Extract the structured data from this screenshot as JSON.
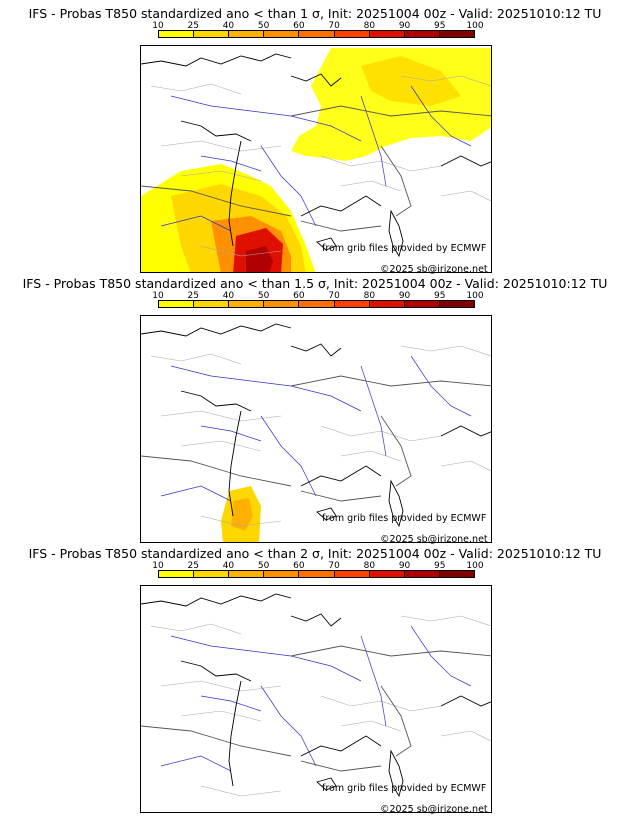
{
  "scale": {
    "ticks": [
      "10",
      "25",
      "40",
      "50",
      "60",
      "70",
      "80",
      "90",
      "95",
      "100"
    ],
    "colors": [
      "#ffff00",
      "#ffd700",
      "#ffb000",
      "#ff9000",
      "#ff7000",
      "#ff4000",
      "#e01000",
      "#b00000",
      "#800000"
    ]
  },
  "panels": [
    {
      "title": "IFS - Probas T850  standardized ano < than 1 σ, Init: 20251004 00z - Valid: 20251010:12 TU",
      "source": "from grib files provided by ECMWF",
      "copyright": "©2025 sb@irizone.net",
      "prob_fields": [
        {
          "level": "north-east",
          "color": "#ffff00"
        },
        {
          "level": "south-west",
          "color": "#e01000"
        }
      ]
    },
    {
      "title": "IFS - Probas T850  standardized ano < than 1.5 σ, Init: 20251004 00z - Valid: 20251010:12 TU",
      "source": "from grib files provided by ECMWF",
      "copyright": "©2025 sb@irizone.net",
      "prob_fields": [
        {
          "level": "south",
          "color": "#ffd700"
        }
      ]
    },
    {
      "title": "IFS - Probas T850  standardized ano < than 2 σ, Init: 20251004 00z - Valid: 20251010:12 TU",
      "source": "from grib files provided by ECMWF",
      "copyright": "©2025 sb@irizone.net",
      "prob_fields": []
    }
  ]
}
